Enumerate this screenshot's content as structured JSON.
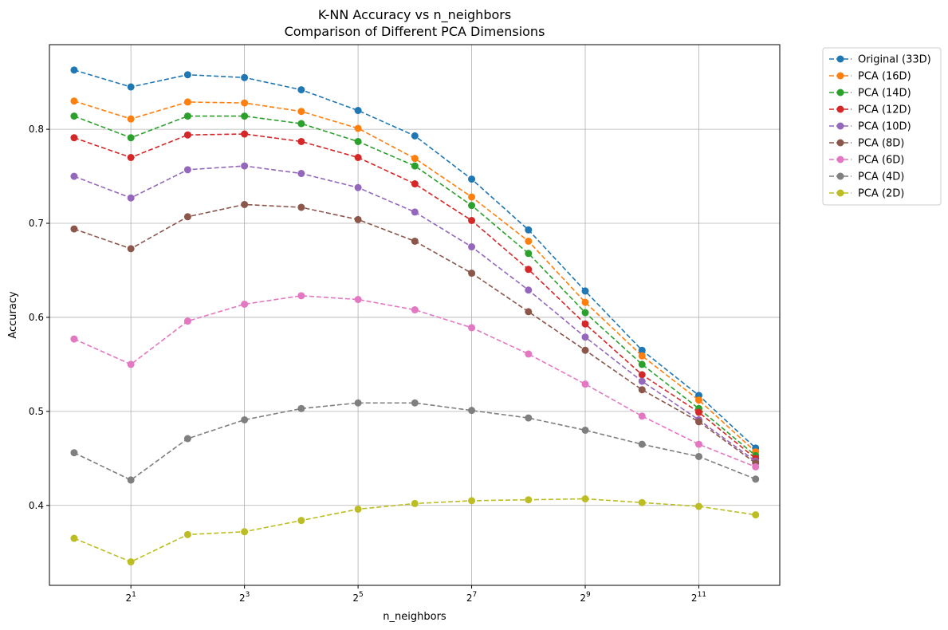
{
  "chart_data": {
    "type": "line",
    "title": "K-NN Accuracy vs n_neighbors",
    "subtitle": "Comparison of Different PCA Dimensions",
    "xlabel": "n_neighbors",
    "ylabel": "Accuracy",
    "x_scale": "log2",
    "x": [
      1,
      2,
      4,
      8,
      16,
      32,
      64,
      128,
      256,
      512,
      1024,
      2048,
      4096
    ],
    "x_ticks": [
      {
        "value": 2,
        "base": "2",
        "exp": "1"
      },
      {
        "value": 8,
        "base": "2",
        "exp": "3"
      },
      {
        "value": 32,
        "base": "2",
        "exp": "5"
      },
      {
        "value": 128,
        "base": "2",
        "exp": "7"
      },
      {
        "value": 512,
        "base": "2",
        "exp": "9"
      },
      {
        "value": 2048,
        "base": "2",
        "exp": "11"
      }
    ],
    "y_ticks": [
      0.4,
      0.5,
      0.6,
      0.7,
      0.8
    ],
    "y_tick_labels": [
      "0.4",
      "0.5",
      "0.6",
      "0.7",
      "0.8"
    ],
    "xlim": [
      0.74,
      5500
    ],
    "ylim": [
      0.315,
      0.89
    ],
    "grid": true,
    "legend_position": "outside-top-right",
    "line_style": "dashed",
    "marker": "circle",
    "series": [
      {
        "name": "Original (33D)",
        "color": "#1f77b4",
        "values": [
          0.863,
          0.845,
          0.858,
          0.855,
          0.842,
          0.82,
          0.793,
          0.747,
          0.693,
          0.628,
          0.565,
          0.517,
          0.461
        ]
      },
      {
        "name": "PCA (16D)",
        "color": "#ff7f0e",
        "values": [
          0.83,
          0.811,
          0.829,
          0.828,
          0.819,
          0.801,
          0.769,
          0.728,
          0.681,
          0.616,
          0.559,
          0.512,
          0.457
        ]
      },
      {
        "name": "PCA (14D)",
        "color": "#2ca02c",
        "values": [
          0.814,
          0.791,
          0.814,
          0.814,
          0.806,
          0.787,
          0.761,
          0.719,
          0.668,
          0.605,
          0.55,
          0.503,
          0.453
        ]
      },
      {
        "name": "PCA (12D)",
        "color": "#d62728",
        "values": [
          0.791,
          0.77,
          0.794,
          0.795,
          0.787,
          0.77,
          0.742,
          0.703,
          0.651,
          0.593,
          0.539,
          0.499,
          0.45
        ]
      },
      {
        "name": "PCA (10D)",
        "color": "#9467bd",
        "values": [
          0.75,
          0.727,
          0.757,
          0.761,
          0.753,
          0.738,
          0.712,
          0.675,
          0.629,
          0.579,
          0.532,
          0.491,
          0.447
        ]
      },
      {
        "name": "PCA (8D)",
        "color": "#8c564b",
        "values": [
          0.694,
          0.673,
          0.707,
          0.72,
          0.717,
          0.704,
          0.681,
          0.647,
          0.606,
          0.565,
          0.523,
          0.489,
          0.445
        ]
      },
      {
        "name": "PCA (6D)",
        "color": "#e377c2",
        "values": [
          0.577,
          0.55,
          0.596,
          0.614,
          0.623,
          0.619,
          0.608,
          0.589,
          0.561,
          0.529,
          0.495,
          0.465,
          0.441
        ]
      },
      {
        "name": "PCA (4D)",
        "color": "#7f7f7f",
        "values": [
          0.456,
          0.427,
          0.471,
          0.491,
          0.503,
          0.509,
          0.509,
          0.501,
          0.493,
          0.48,
          0.465,
          0.452,
          0.428
        ]
      },
      {
        "name": "PCA (2D)",
        "color": "#bcbd22",
        "values": [
          0.365,
          0.34,
          0.369,
          0.372,
          0.384,
          0.396,
          0.402,
          0.405,
          0.406,
          0.407,
          0.403,
          0.399,
          0.39
        ]
      }
    ]
  }
}
